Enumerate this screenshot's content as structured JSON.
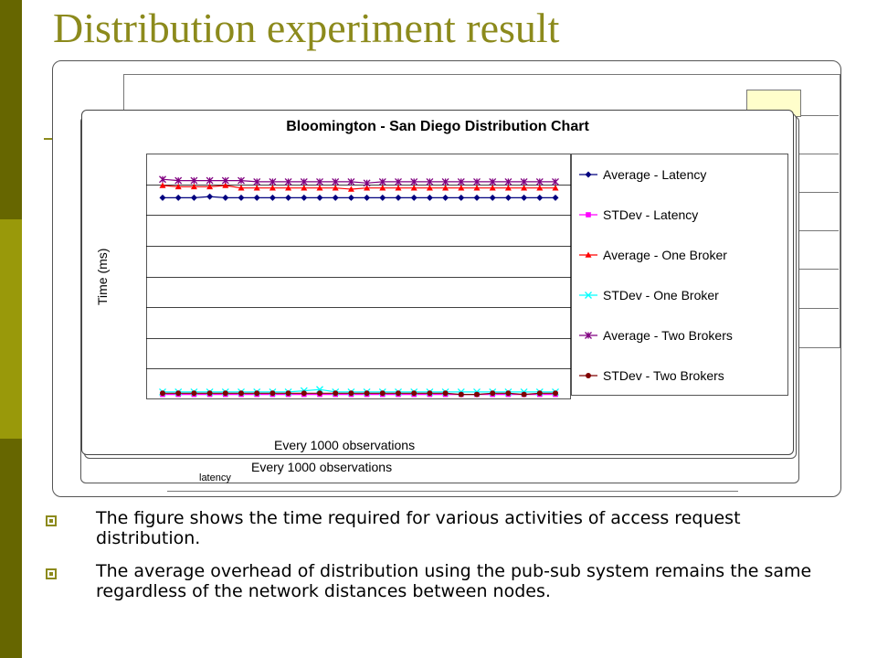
{
  "slide": {
    "title": "Distribution experiment result",
    "bullets": [
      "The figure shows the time required for various activities of access request distribution.",
      "The average overhead of distribution using the pub-sub system remains the same regardless of the network distances between nodes."
    ]
  },
  "theme": {
    "band_colors": [
      "#666600",
      "#99990a",
      "#666600",
      "#99990a"
    ],
    "title_color": "#8c8a1c",
    "back_tab_fill": "#fffecb"
  },
  "background_chart": {
    "x_label": "Every 1000 observations",
    "fragment": "latency"
  },
  "chart_data": {
    "type": "line",
    "title": "Bloomington - San Diego Distribution Chart",
    "xlabel": "Every 1000 observations",
    "ylabel": "Time (ms)",
    "y_tick_labels": "not visible",
    "grid": true,
    "legend_position": "right",
    "point_count": 26,
    "series": [
      {
        "name": "Average - Latency",
        "color": "#00007f",
        "marker": "diamond",
        "values": [
          8.2,
          8.2,
          8.2,
          8.25,
          8.2,
          8.2,
          8.2,
          8.2,
          8.2,
          8.2,
          8.2,
          8.2,
          8.2,
          8.2,
          8.2,
          8.2,
          8.2,
          8.2,
          8.2,
          8.2,
          8.2,
          8.2,
          8.2,
          8.2,
          8.2,
          8.2
        ]
      },
      {
        "name": "STDev - Latency",
        "color": "#ff00ff",
        "marker": "square",
        "values": [
          0.2,
          0.2,
          0.2,
          0.2,
          0.2,
          0.2,
          0.2,
          0.2,
          0.2,
          0.2,
          0.2,
          0.2,
          0.2,
          0.2,
          0.2,
          0.2,
          0.2,
          0.2,
          0.2,
          0.2,
          0.2,
          0.2,
          0.2,
          0.2,
          0.2,
          0.2
        ]
      },
      {
        "name": "Average - One Broker",
        "color": "#ff0000",
        "marker": "triangle",
        "values": [
          8.7,
          8.65,
          8.65,
          8.65,
          8.7,
          8.6,
          8.6,
          8.6,
          8.6,
          8.6,
          8.6,
          8.6,
          8.55,
          8.6,
          8.6,
          8.6,
          8.6,
          8.6,
          8.6,
          8.6,
          8.6,
          8.6,
          8.6,
          8.6,
          8.6,
          8.6
        ]
      },
      {
        "name": "STDev - One Broker",
        "color": "#00ffff",
        "marker": "x",
        "values": [
          0.3,
          0.3,
          0.3,
          0.3,
          0.3,
          0.3,
          0.3,
          0.3,
          0.3,
          0.35,
          0.4,
          0.3,
          0.3,
          0.3,
          0.3,
          0.3,
          0.3,
          0.3,
          0.3,
          0.3,
          0.3,
          0.3,
          0.3,
          0.3,
          0.3,
          0.3
        ]
      },
      {
        "name": "Average - Two Brokers",
        "color": "#800080",
        "marker": "star",
        "values": [
          8.95,
          8.9,
          8.9,
          8.9,
          8.9,
          8.9,
          8.85,
          8.85,
          8.85,
          8.85,
          8.85,
          8.85,
          8.85,
          8.8,
          8.85,
          8.85,
          8.85,
          8.85,
          8.85,
          8.85,
          8.85,
          8.85,
          8.85,
          8.85,
          8.85,
          8.85
        ]
      },
      {
        "name": "STDev - Two Brokers",
        "color": "#800000",
        "marker": "circle",
        "values": [
          0.25,
          0.25,
          0.25,
          0.25,
          0.25,
          0.25,
          0.25,
          0.25,
          0.25,
          0.25,
          0.25,
          0.25,
          0.25,
          0.25,
          0.25,
          0.25,
          0.25,
          0.25,
          0.25,
          0.2,
          0.2,
          0.25,
          0.25,
          0.2,
          0.25,
          0.25
        ]
      }
    ],
    "ylim": [
      0,
      10
    ]
  }
}
